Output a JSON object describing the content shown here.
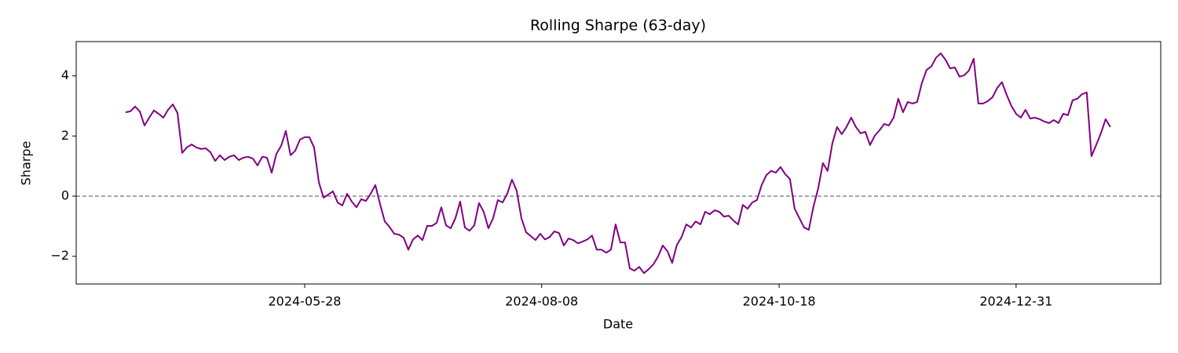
{
  "chart_data": {
    "type": "line",
    "title": "Rolling Sharpe (63-day)",
    "x_label": "Date",
    "y_label": "Sharpe",
    "x": [
      0,
      1,
      2,
      3,
      4,
      5,
      6,
      7,
      8,
      9,
      10,
      11,
      12,
      13,
      14,
      15,
      16,
      17,
      18,
      19,
      20,
      21,
      22,
      23,
      24,
      25,
      26,
      27,
      28,
      29,
      30,
      31,
      32,
      33,
      34,
      35,
      36,
      37,
      38,
      39,
      40,
      41,
      42,
      43,
      44,
      45,
      46,
      47,
      48,
      49,
      50,
      51,
      52,
      53,
      54,
      55,
      56,
      57,
      58,
      59,
      60,
      61,
      62,
      63,
      64,
      65,
      66,
      67,
      68,
      69,
      70,
      71,
      72,
      73,
      74,
      75,
      76,
      77,
      78,
      79,
      80,
      81,
      82,
      83,
      84,
      85,
      86,
      87,
      88,
      89,
      90,
      91,
      92,
      93,
      94,
      95,
      96,
      97,
      98,
      99,
      100,
      101,
      102,
      103,
      104,
      105,
      106,
      107,
      108,
      109,
      110,
      111,
      112,
      113,
      114,
      115,
      116,
      117,
      118,
      119,
      120,
      121,
      122,
      123,
      124,
      125,
      126,
      127,
      128,
      129,
      130,
      131,
      132,
      133,
      134,
      135,
      136,
      137,
      138,
      139,
      140,
      141,
      142,
      143,
      144,
      145,
      146,
      147,
      148,
      149,
      150,
      151,
      152,
      153,
      154,
      155,
      156,
      157,
      158,
      159,
      160,
      161,
      162,
      163,
      164,
      165,
      166,
      167,
      168,
      169,
      170,
      171,
      172,
      173,
      174,
      175,
      176,
      177,
      178,
      179,
      180,
      181,
      182,
      183,
      184,
      185,
      186,
      187,
      188,
      189,
      190,
      191,
      192,
      193,
      194,
      195,
      196,
      197,
      198,
      199,
      200,
      201,
      202,
      203,
      204,
      205,
      206,
      207,
      208,
      209
    ],
    "series": [
      {
        "name": "Rolling Sharpe",
        "color": "#800080",
        "values": [
          2.79,
          2.82,
          2.98,
          2.82,
          2.35,
          2.61,
          2.85,
          2.74,
          2.61,
          2.87,
          3.05,
          2.77,
          1.44,
          1.62,
          1.72,
          1.62,
          1.57,
          1.59,
          1.46,
          1.17,
          1.36,
          1.2,
          1.31,
          1.36,
          1.2,
          1.28,
          1.31,
          1.25,
          1.02,
          1.31,
          1.28,
          0.78,
          1.41,
          1.67,
          2.17,
          1.36,
          1.51,
          1.88,
          1.96,
          1.96,
          1.62,
          0.47,
          -0.05,
          0.05,
          0.16,
          -0.21,
          -0.31,
          0.08,
          -0.18,
          -0.37,
          -0.1,
          -0.16,
          0.08,
          0.37,
          -0.26,
          -0.84,
          -1.02,
          -1.25,
          -1.28,
          -1.38,
          -1.78,
          -1.44,
          -1.31,
          -1.46,
          -0.99,
          -0.99,
          -0.89,
          -0.37,
          -0.97,
          -1.07,
          -0.73,
          -0.18,
          -1.04,
          -1.15,
          -0.97,
          -0.23,
          -0.52,
          -1.07,
          -0.73,
          -0.13,
          -0.21,
          0.08,
          0.55,
          0.18,
          -0.73,
          -1.2,
          -1.33,
          -1.46,
          -1.25,
          -1.44,
          -1.36,
          -1.17,
          -1.23,
          -1.64,
          -1.41,
          -1.46,
          -1.57,
          -1.51,
          -1.44,
          -1.31,
          -1.78,
          -1.78,
          -1.88,
          -1.78,
          -0.94,
          -1.54,
          -1.54,
          -2.4,
          -2.48,
          -2.35,
          -2.56,
          -2.43,
          -2.27,
          -2.01,
          -1.64,
          -1.83,
          -2.22,
          -1.62,
          -1.36,
          -0.94,
          -1.04,
          -0.84,
          -0.94,
          -0.52,
          -0.6,
          -0.47,
          -0.52,
          -0.68,
          -0.65,
          -0.81,
          -0.94,
          -0.29,
          -0.42,
          -0.21,
          -0.13,
          0.37,
          0.7,
          0.84,
          0.78,
          0.97,
          0.73,
          0.57,
          -0.42,
          -0.73,
          -1.04,
          -1.12,
          -0.34,
          0.26,
          1.1,
          0.84,
          1.75,
          2.3,
          2.06,
          2.3,
          2.61,
          2.3,
          2.09,
          2.14,
          1.7,
          2.01,
          2.19,
          2.4,
          2.35,
          2.61,
          3.24,
          2.79,
          3.13,
          3.08,
          3.13,
          3.76,
          4.2,
          4.31,
          4.6,
          4.75,
          4.54,
          4.25,
          4.28,
          3.97,
          4.02,
          4.18,
          4.57,
          3.08,
          3.08,
          3.16,
          3.29,
          3.6,
          3.79,
          3.37,
          3.0,
          2.74,
          2.61,
          2.87,
          2.58,
          2.61,
          2.56,
          2.48,
          2.43,
          2.53,
          2.43,
          2.74,
          2.69,
          3.19,
          3.24,
          3.39,
          3.45,
          1.33,
          1.7,
          2.09,
          2.56,
          2.3
        ]
      }
    ],
    "xlim": [
      -10.5,
      219.7
    ],
    "xticks": [
      {
        "value": 38,
        "label": "2024-05-28"
      },
      {
        "value": 88.3,
        "label": "2024-08-08"
      },
      {
        "value": 138.7,
        "label": "2024-10-18"
      },
      {
        "value": 189,
        "label": "2024-12-31"
      }
    ],
    "ylim": [
      -2.92,
      5.14
    ],
    "yticks": [
      {
        "value": -2,
        "label": "−2"
      },
      0,
      2,
      4
    ],
    "reference_line": 0,
    "reference_color": "#808080"
  }
}
